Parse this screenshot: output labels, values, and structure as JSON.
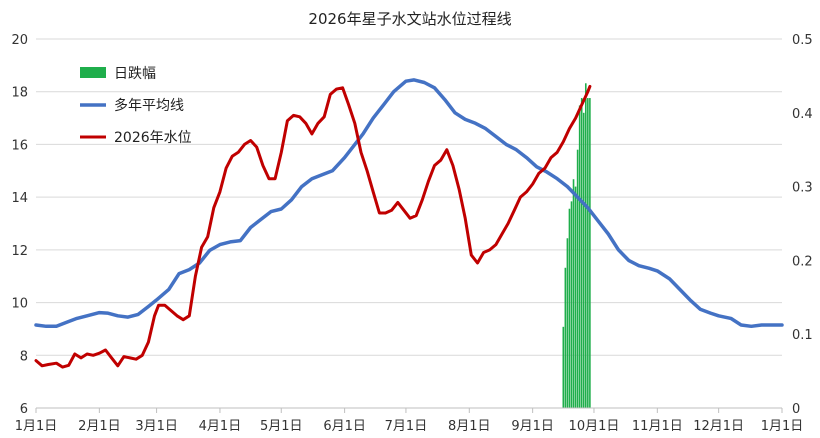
{
  "chart_data": {
    "type": "line",
    "title": "2026年星子水文站水位过程线",
    "x_tick_labels": [
      "1月1日",
      "2月1日",
      "3月1日",
      "4月1日",
      "5月1日",
      "6月1日",
      "7月1日",
      "8月1日",
      "9月1日",
      "10月1日",
      "11月1日",
      "12月1日",
      "1月1日"
    ],
    "x_tick_days": [
      0,
      31,
      59,
      90,
      120,
      151,
      181,
      212,
      243,
      273,
      304,
      334,
      365
    ],
    "ylim_left": [
      6,
      20
    ],
    "yticks_left": [
      6,
      8,
      10,
      12,
      14,
      16,
      18,
      20
    ],
    "ylim_right": [
      0,
      0.5
    ],
    "yticks_right": [
      "0",
      "0.1",
      "0.2",
      "0.3",
      "0.4",
      "0.5"
    ],
    "grid": "horizontal",
    "legend_position": "top-left",
    "colors": {
      "daily_amplitude": "#1fae4b",
      "multi_year_mean": "#4472c4",
      "water_level_2026": "#c00000"
    },
    "series": [
      {
        "name": "日跌幅",
        "type": "bar",
        "axis": "right",
        "x": [
          258,
          259,
          260,
          261,
          262,
          263,
          264,
          265,
          266,
          267,
          268,
          269,
          270,
          271
        ],
        "values": [
          0.11,
          0.19,
          0.23,
          0.27,
          0.28,
          0.31,
          0.3,
          0.35,
          0.41,
          0.42,
          0.4,
          0.44,
          0.42,
          0.42
        ]
      },
      {
        "name": "多年平均线",
        "type": "line",
        "axis": "left",
        "x": [
          0,
          5,
          10,
          15,
          20,
          25,
          31,
          35,
          40,
          45,
          50,
          55,
          59,
          65,
          70,
          75,
          80,
          85,
          90,
          95,
          100,
          105,
          110,
          115,
          120,
          125,
          130,
          135,
          140,
          145,
          151,
          155,
          160,
          165,
          170,
          175,
          181,
          185,
          190,
          195,
          200,
          205,
          210,
          215,
          220,
          225,
          230,
          235,
          240,
          245,
          250,
          255,
          260,
          265,
          270,
          275,
          280,
          285,
          290,
          295,
          300,
          304,
          310,
          315,
          320,
          325,
          330,
          334,
          340,
          345,
          350,
          355,
          360,
          365
        ],
        "values": [
          9.15,
          9.1,
          9.1,
          9.25,
          9.4,
          9.5,
          9.62,
          9.6,
          9.5,
          9.45,
          9.55,
          9.85,
          10.1,
          10.5,
          11.1,
          11.25,
          11.5,
          11.98,
          12.2,
          12.3,
          12.35,
          12.85,
          13.15,
          13.45,
          13.55,
          13.9,
          14.4,
          14.7,
          14.85,
          15.0,
          15.5,
          15.9,
          16.4,
          17.0,
          17.5,
          18.0,
          18.4,
          18.45,
          18.35,
          18.15,
          17.7,
          17.2,
          16.95,
          16.8,
          16.6,
          16.3,
          16.0,
          15.8,
          15.5,
          15.15,
          14.95,
          14.7,
          14.4,
          14.0,
          13.6,
          13.1,
          12.6,
          12.0,
          11.6,
          11.4,
          11.3,
          11.2,
          10.9,
          10.5,
          10.1,
          9.75,
          9.6,
          9.5,
          9.4,
          9.15,
          9.1,
          9.15,
          9.15,
          9.15
        ]
      },
      {
        "name": "2026年水位",
        "type": "line",
        "axis": "left",
        "x": [
          0,
          3,
          6,
          10,
          13,
          16,
          19,
          22,
          25,
          28,
          31,
          34,
          37,
          40,
          43,
          46,
          49,
          52,
          55,
          58,
          60,
          63,
          66,
          69,
          72,
          75,
          78,
          81,
          84,
          87,
          90,
          93,
          96,
          99,
          102,
          105,
          108,
          111,
          114,
          117,
          120,
          123,
          126,
          129,
          132,
          135,
          138,
          141,
          144,
          147,
          150,
          153,
          156,
          159,
          162,
          165,
          168,
          171,
          174,
          177,
          180,
          183,
          186,
          189,
          192,
          195,
          198,
          201,
          204,
          207,
          210,
          213,
          216,
          219,
          222,
          225,
          228,
          231,
          234,
          237,
          240,
          243,
          246,
          249,
          252,
          255,
          258,
          261,
          264,
          267,
          270,
          271
        ],
        "values": [
          7.8,
          7.6,
          7.65,
          7.7,
          7.55,
          7.62,
          8.05,
          7.9,
          8.05,
          8.0,
          8.08,
          8.2,
          7.9,
          7.6,
          7.95,
          7.9,
          7.85,
          8.0,
          8.5,
          9.5,
          9.9,
          9.9,
          9.7,
          9.5,
          9.35,
          9.5,
          11.0,
          12.1,
          12.5,
          13.6,
          14.2,
          15.1,
          15.55,
          15.7,
          16.0,
          16.15,
          15.9,
          15.2,
          14.7,
          14.7,
          15.7,
          16.9,
          17.1,
          17.05,
          16.8,
          16.4,
          16.8,
          17.05,
          17.9,
          18.1,
          18.15,
          17.5,
          16.8,
          15.7,
          15.0,
          14.2,
          13.4,
          13.4,
          13.5,
          13.8,
          13.5,
          13.2,
          13.3,
          13.9,
          14.6,
          15.2,
          15.4,
          15.8,
          15.2,
          14.3,
          13.2,
          11.8,
          11.5,
          11.9,
          12.0,
          12.2,
          12.6,
          13.0,
          13.5,
          14.0,
          14.2,
          14.5,
          14.9,
          15.1,
          15.5,
          15.7,
          16.1,
          16.6,
          17.0,
          17.5,
          18.0,
          18.2
        ]
      }
    ],
    "legend": [
      {
        "label": "日跌幅",
        "swatch": "bar",
        "color": "#1fae4b"
      },
      {
        "label": "多年平均线",
        "swatch": "line",
        "color": "#4472c4"
      },
      {
        "label": "2026年水位",
        "swatch": "line",
        "color": "#c00000"
      }
    ]
  }
}
